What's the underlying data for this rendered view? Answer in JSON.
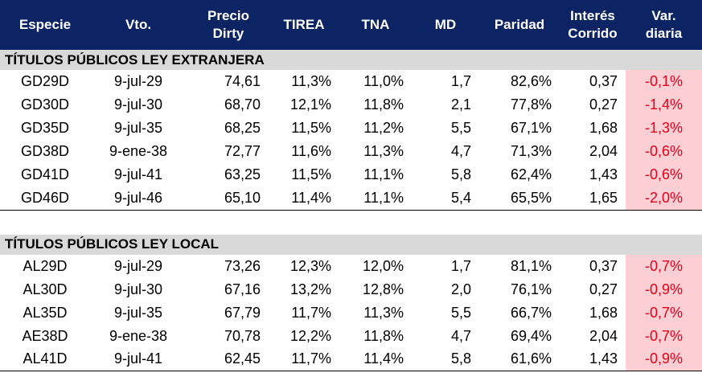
{
  "headers": [
    "Especie",
    "Vto.",
    "Precio Dirty",
    "TIREA",
    "TNA",
    "MD",
    "Paridad",
    "Interés Corrido",
    "Var. diaria"
  ],
  "sections": [
    {
      "title": "TÍTULOS PÚBLICOS LEY EXTRANJERA",
      "rows": [
        [
          "GD29D",
          "9-jul-29",
          "74,61",
          "11,3%",
          "11,0%",
          "1,7",
          "82,6%",
          "0,37",
          "-0,1%"
        ],
        [
          "GD30D",
          "9-jul-30",
          "68,70",
          "12,1%",
          "11,8%",
          "2,1",
          "77,8%",
          "0,27",
          "-1,4%"
        ],
        [
          "GD35D",
          "9-jul-35",
          "68,25",
          "11,5%",
          "11,2%",
          "5,5",
          "67,1%",
          "1,68",
          "-1,3%"
        ],
        [
          "GD38D",
          "9-ene-38",
          "72,77",
          "11,6%",
          "11,3%",
          "4,7",
          "71,3%",
          "2,04",
          "-0,6%"
        ],
        [
          "GD41D",
          "9-jul-41",
          "63,25",
          "11,5%",
          "11,1%",
          "5,8",
          "62,4%",
          "1,43",
          "-0,6%"
        ],
        [
          "GD46D",
          "9-jul-46",
          "65,10",
          "11,4%",
          "11,1%",
          "5,4",
          "65,5%",
          "1,65",
          "-2,0%"
        ]
      ]
    },
    {
      "title": "TÍTULOS PÚBLICOS LEY LOCAL",
      "rows": [
        [
          "AL29D",
          "9-jul-29",
          "73,26",
          "12,3%",
          "12,0%",
          "1,7",
          "81,1%",
          "0,37",
          "-0,7%"
        ],
        [
          "AL30D",
          "9-jul-30",
          "67,16",
          "13,2%",
          "12,8%",
          "2,0",
          "76,1%",
          "0,27",
          "-0,9%"
        ],
        [
          "AL35D",
          "9-jul-35",
          "67,79",
          "11,7%",
          "11,3%",
          "5,5",
          "66,7%",
          "1,68",
          "-0,7%"
        ],
        [
          "AE38D",
          "9-ene-38",
          "70,78",
          "12,2%",
          "11,8%",
          "4,7",
          "69,4%",
          "2,04",
          "-0,7%"
        ],
        [
          "AL41D",
          "9-jul-41",
          "62,45",
          "11,7%",
          "11,4%",
          "5,8",
          "61,6%",
          "1,43",
          "-0,9%"
        ]
      ]
    }
  ]
}
